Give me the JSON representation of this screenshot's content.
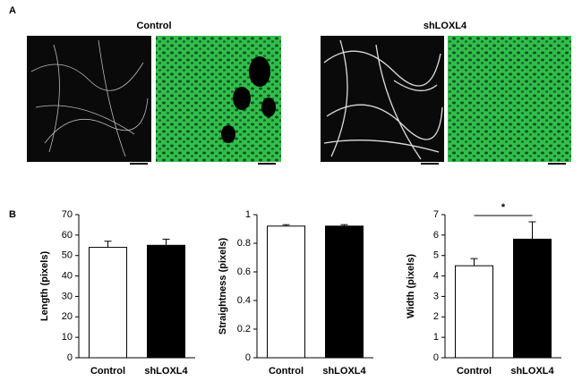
{
  "panel_labels": [
    "A",
    "B"
  ],
  "image_titles": [
    "Control",
    "shLOXL4"
  ],
  "chart_data": [
    {
      "type": "bar",
      "y_label": "Length (pixels)",
      "categories": [
        "Control",
        "shLOXL4"
      ],
      "values": [
        54,
        55
      ],
      "errors": [
        3,
        3
      ],
      "colors": [
        "#ffffff",
        "#000000"
      ],
      "ylim": [
        0,
        70
      ],
      "yticks": [
        0,
        10,
        20,
        30,
        40,
        50,
        60,
        70
      ]
    },
    {
      "type": "bar",
      "y_label": "Straightness (pixels)",
      "categories": [
        "Control",
        "shLOXL4"
      ],
      "values": [
        0.92,
        0.92
      ],
      "errors": [
        0.01,
        0.01
      ],
      "colors": [
        "#ffffff",
        "#000000"
      ],
      "ylim": [
        0,
        1
      ],
      "yticks": [
        0,
        0.2,
        0.4,
        0.6,
        0.8,
        1
      ]
    },
    {
      "type": "bar",
      "y_label": "Width (pixels)",
      "categories": [
        "Control",
        "shLOXL4"
      ],
      "values": [
        4.5,
        5.8
      ],
      "errors": [
        0.35,
        0.85
      ],
      "colors": [
        "#ffffff",
        "#000000"
      ],
      "ylim": [
        0,
        7
      ],
      "yticks": [
        0,
        1,
        2,
        3,
        4,
        5,
        6,
        7
      ],
      "annotation": "*"
    }
  ]
}
